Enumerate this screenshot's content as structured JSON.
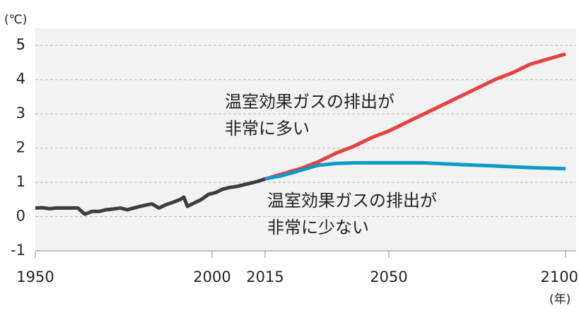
{
  "chart_data": {
    "type": "line",
    "y_unit": "(℃)",
    "x_unit": "(年)",
    "xlim": [
      1950,
      2103
    ],
    "ylim": [
      -1,
      5.5
    ],
    "xticks": [
      1950,
      2000,
      2015,
      2050,
      2100
    ],
    "yticks": [
      -1,
      0,
      1,
      2,
      3,
      4,
      5
    ],
    "grid": true,
    "series": [
      {
        "color": "#3d3d3d",
        "x": [
          1950,
          1952,
          1954,
          1956,
          1958,
          1960,
          1962,
          1964,
          1966,
          1968,
          1970,
          1972,
          1974,
          1976,
          1979,
          1981,
          1983,
          1985,
          1987,
          1989,
          1991,
          1992,
          1993,
          1995,
          1997,
          1999,
          2001,
          2003,
          2005,
          2007,
          2009,
          2011,
          2013,
          2015
        ],
        "values": [
          0.25,
          0.26,
          0.23,
          0.25,
          0.25,
          0.25,
          0.25,
          0.07,
          0.15,
          0.15,
          0.2,
          0.22,
          0.25,
          0.2,
          0.28,
          0.33,
          0.37,
          0.25,
          0.35,
          0.42,
          0.5,
          0.57,
          0.3,
          0.4,
          0.5,
          0.65,
          0.7,
          0.8,
          0.85,
          0.88,
          0.93,
          0.98,
          1.03,
          1.1
        ]
      },
      {
        "color": "#e8403f",
        "x": [
          2015,
          2020,
          2025,
          2030,
          2035,
          2040,
          2045,
          2050,
          2055,
          2060,
          2065,
          2070,
          2075,
          2080,
          2085,
          2090,
          2095,
          2100
        ],
        "values": [
          1.1,
          1.25,
          1.4,
          1.6,
          1.85,
          2.05,
          2.3,
          2.5,
          2.75,
          3.0,
          3.25,
          3.5,
          3.75,
          4.0,
          4.2,
          4.45,
          4.6,
          4.75
        ]
      },
      {
        "color": "#0e9ac8",
        "x": [
          2015,
          2020,
          2025,
          2030,
          2035,
          2040,
          2050,
          2060,
          2070,
          2080,
          2090,
          2100
        ],
        "values": [
          1.1,
          1.2,
          1.35,
          1.5,
          1.55,
          1.57,
          1.57,
          1.57,
          1.52,
          1.48,
          1.43,
          1.4
        ]
      }
    ],
    "annotations": [
      {
        "lines": [
          "温室効果ガスの排出が",
          "非常に多い"
        ],
        "color": "#e8403f"
      },
      {
        "lines": [
          "温室効果ガスの排出が",
          "非常に少ない"
        ],
        "color": "#0e9ac8"
      }
    ]
  }
}
